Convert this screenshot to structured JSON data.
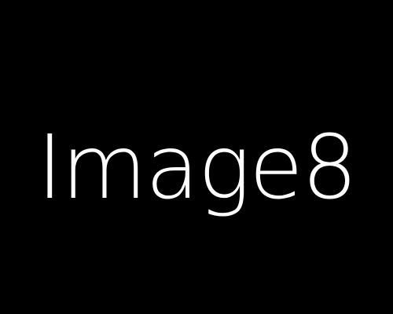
{
  "image": {
    "text": "Image8",
    "background_color": "#000000",
    "text_color": "#ffffff"
  }
}
